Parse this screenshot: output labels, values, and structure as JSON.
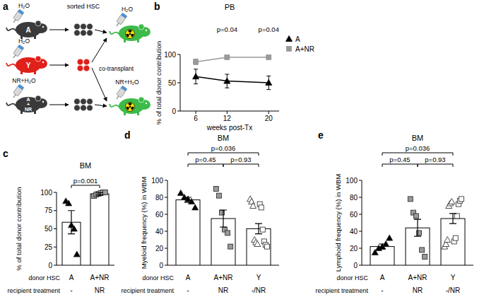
{
  "diagram": {
    "panel": "a",
    "sorted_label": "sorted HSC",
    "transplant_label": "co-transplant",
    "donors": [
      {
        "label": "A",
        "water": "H₂O",
        "color": "#3a3a3a"
      },
      {
        "label": "Y",
        "water": "H₂O",
        "color": "#e0201b"
      },
      {
        "label": "A + NR",
        "water": "NR+H₂O",
        "color": "#3a3a3a"
      }
    ],
    "recipients": [
      {
        "water": "H₂O",
        "color": "#3dbb4a"
      },
      {
        "water": "NR+H₂O",
        "color": "#3dbb4a"
      }
    ]
  },
  "chart_data": [
    {
      "panel": "b",
      "type": "line",
      "title": "PB",
      "xlabel": "weeks post-Tx",
      "ylabel": "% of total donor contribution",
      "x": [
        6,
        12,
        20
      ],
      "xlim": [
        3,
        22
      ],
      "xticks": [
        6,
        12,
        20
      ],
      "ylim": [
        0,
        100
      ],
      "yticks": [
        0,
        50,
        100
      ],
      "legend": "right",
      "series": [
        {
          "name": "A",
          "color": "#000000",
          "marker": "triangle",
          "values": [
            61,
            53,
            50
          ],
          "errors": [
            13,
            12,
            12
          ]
        },
        {
          "name": "A+NR",
          "color": "#999999",
          "marker": "square",
          "values": [
            87,
            95,
            95
          ],
          "errors": [
            5,
            2,
            1.5
          ]
        }
      ],
      "annotations": [
        {
          "x": 12,
          "text": "p=0.04"
        },
        {
          "x": 20,
          "text": "p=0.04"
        }
      ]
    },
    {
      "panel": "c",
      "type": "bar",
      "title": "BM",
      "ylabel": "% of total donor contribution",
      "categories": [
        "A",
        "A+NR"
      ],
      "values": [
        59,
        98
      ],
      "errors": [
        16,
        1.5
      ],
      "color": "#ffffff",
      "ylim": [
        0,
        100
      ],
      "yticks": [
        0,
        25,
        50,
        75,
        100
      ],
      "row_titles": [
        "donor HSC",
        "recipient treatment"
      ],
      "treatment": [
        "-",
        "NR"
      ],
      "points": [
        {
          "category": "A",
          "marker": "triangle",
          "color": "#000000",
          "values": [
            88,
            85,
            55,
            50,
            15
          ]
        },
        {
          "category": "A+NR",
          "marker": "square",
          "color": "#999999",
          "values": [
            95,
            97,
            98,
            99,
            100,
            100
          ]
        }
      ],
      "comparisons": [
        {
          "between": [
            "A",
            "A+NR"
          ],
          "text": "p=0.001"
        }
      ]
    },
    {
      "panel": "d",
      "type": "bar",
      "title": "BM",
      "ylabel": "Myeloid frequency (%) in WBM",
      "categories": [
        "A",
        "A+NR",
        "Y"
      ],
      "values": [
        77,
        55,
        43
      ],
      "errors": [
        3,
        10,
        6
      ],
      "color": "#ffffff",
      "ylim": [
        0,
        100
      ],
      "yticks": [
        0,
        20,
        40,
        60,
        80,
        100
      ],
      "row_titles": [
        "donor HSC",
        "recipient treatment"
      ],
      "treatment": [
        "-",
        "NR",
        "-/NR"
      ],
      "points": [
        {
          "category": "A",
          "marker": "triangle",
          "color": "#000000",
          "values": [
            85,
            80,
            78,
            75,
            68
          ]
        },
        {
          "category": "A+NR",
          "marker": "square",
          "color": "#999999",
          "values": [
            90,
            82,
            62,
            42,
            38,
            22
          ]
        },
        {
          "category": "Y",
          "marker": "triangle",
          "color": "#ffffff",
          "values": [
            78,
            75,
            70,
            30,
            27,
            25
          ]
        },
        {
          "category": "Y",
          "marker": "square",
          "color": "#ffffff",
          "values": [
            72,
            68,
            42,
            28,
            24,
            22
          ]
        }
      ],
      "comparisons": [
        {
          "between": [
            "A",
            "Y"
          ],
          "text": "p=0.036"
        },
        {
          "between": [
            "A",
            "A+NR"
          ],
          "text": "p=0.45"
        },
        {
          "between": [
            "A+NR",
            "Y"
          ],
          "text": "p=0.93"
        }
      ]
    },
    {
      "panel": "e",
      "type": "bar",
      "title": "BM",
      "ylabel": "Lymphoid frequency (%) in WBM",
      "categories": [
        "A",
        "A+NR",
        "Y"
      ],
      "values": [
        22,
        44,
        55
      ],
      "errors": [
        3,
        10,
        6
      ],
      "color": "#ffffff",
      "ylim": [
        0,
        100
      ],
      "yticks": [
        0,
        20,
        40,
        60,
        80,
        100
      ],
      "row_titles": [
        "donor HSC",
        "recipient treatment"
      ],
      "treatment": [
        "-",
        "NR",
        "-/NR"
      ],
      "points": [
        {
          "category": "A",
          "marker": "triangle",
          "color": "#000000",
          "values": [
            15,
            20,
            22,
            25,
            32
          ]
        },
        {
          "category": "A+NR",
          "marker": "square",
          "color": "#999999",
          "values": [
            78,
            62,
            58,
            38,
            18,
            10
          ]
        },
        {
          "category": "Y",
          "marker": "triangle",
          "color": "#ffffff",
          "values": [
            22,
            25,
            30,
            70,
            73,
            75
          ]
        },
        {
          "category": "Y",
          "marker": "square",
          "color": "#ffffff",
          "values": [
            28,
            32,
            58,
            72,
            76,
            78
          ]
        }
      ],
      "comparisons": [
        {
          "between": [
            "A",
            "Y"
          ],
          "text": "p=0.036"
        },
        {
          "between": [
            "A",
            "A+NR"
          ],
          "text": "p=0.45"
        },
        {
          "between": [
            "A+NR",
            "Y"
          ],
          "text": "p=0.93"
        }
      ]
    }
  ]
}
